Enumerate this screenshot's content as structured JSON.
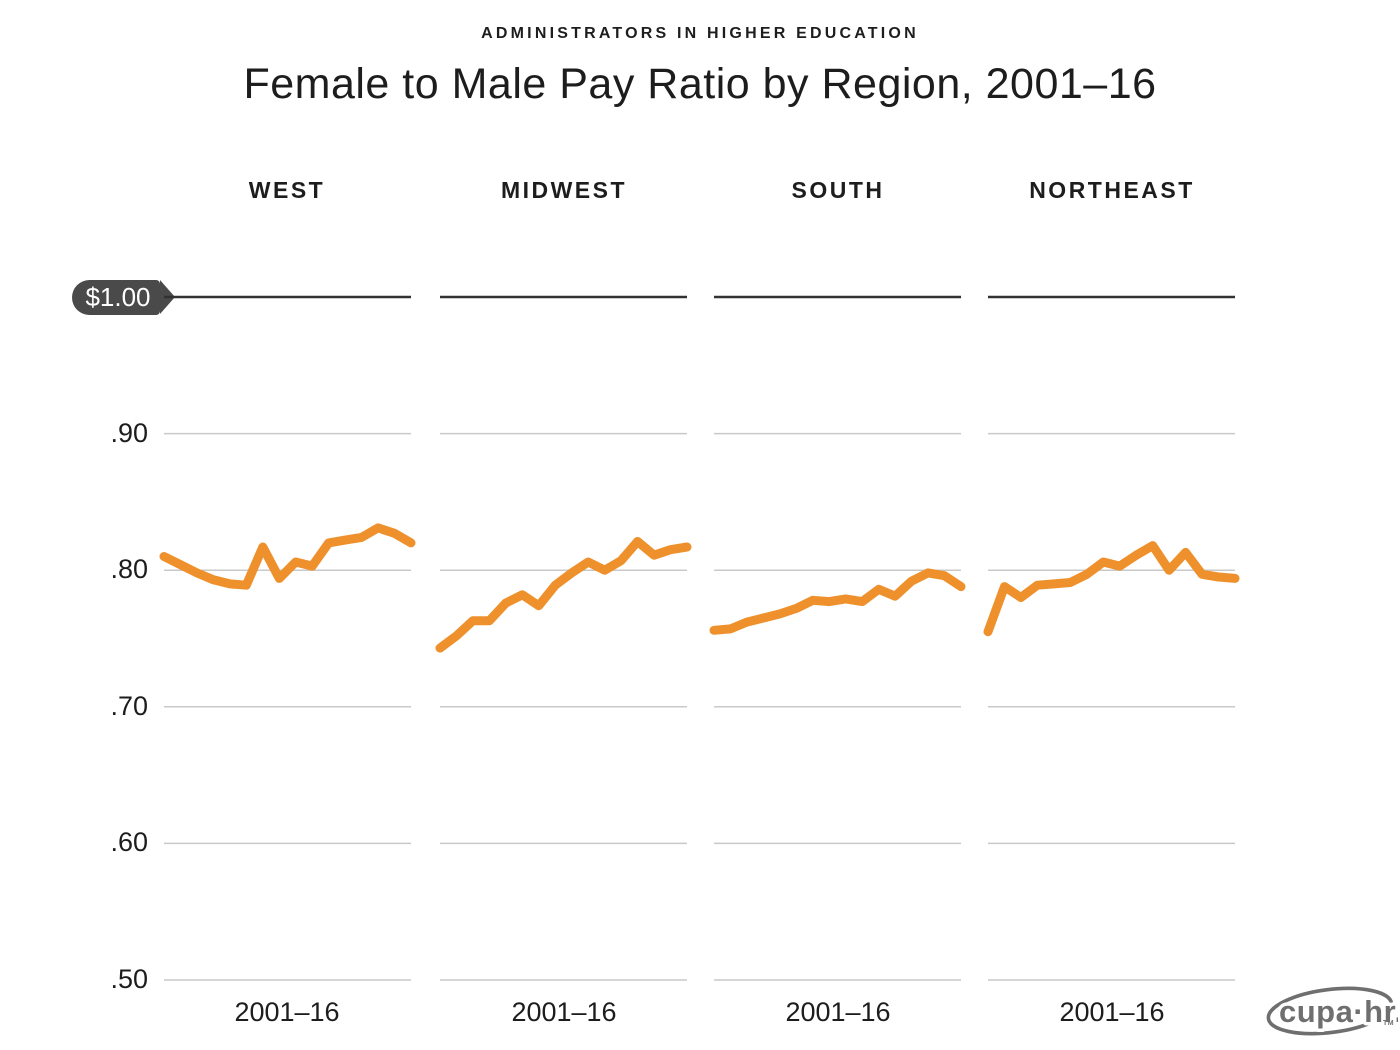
{
  "header": {
    "kicker": "ADMINISTRATORS IN HIGHER EDUCATION",
    "title": "Female to Male Pay Ratio by Region, 2001–16"
  },
  "colors": {
    "line": "#EE912D",
    "grid": "#C9C9C9",
    "top_line": "#323232",
    "pill_bg": "#4A4A4A",
    "pill_text": "#FFFFFF",
    "text": "#1D1D1D",
    "logo": "#6F6F6F"
  },
  "y_axis": {
    "top_label": "$1.00",
    "top_value": 1.0,
    "tick_labels": [
      ".90",
      ".80",
      ".70",
      ".60",
      ".50"
    ],
    "tick_values": [
      0.9,
      0.8,
      0.7,
      0.6,
      0.5
    ]
  },
  "x_axis": {
    "label": "2001–16"
  },
  "logo": {
    "text": "cupa·hr.",
    "tm": "TM"
  },
  "chart_data": {
    "type": "line",
    "title": "Female to Male Pay Ratio by Region, 2001–16",
    "subtitle": "ADMINISTRATORS IN HIGHER EDUCATION",
    "x": [
      2001,
      2002,
      2003,
      2004,
      2005,
      2006,
      2007,
      2008,
      2009,
      2010,
      2011,
      2012,
      2013,
      2014,
      2015,
      2016
    ],
    "x_tick_label": "2001–16",
    "ylim": [
      0.5,
      1.0
    ],
    "y_ticks": [
      1.0,
      0.9,
      0.8,
      0.7,
      0.6,
      0.5
    ],
    "grid": "horizontal only, $1.00 reference line emphasized",
    "legend_position": "none (small multiples with panel titles)",
    "panels": [
      {
        "name": "WEST",
        "values": [
          0.81,
          0.804,
          0.798,
          0.793,
          0.79,
          0.789,
          0.817,
          0.794,
          0.806,
          0.803,
          0.82,
          0.822,
          0.824,
          0.831,
          0.827,
          0.82
        ]
      },
      {
        "name": "MIDWEST",
        "values": [
          0.743,
          0.752,
          0.763,
          0.763,
          0.776,
          0.782,
          0.774,
          0.789,
          0.798,
          0.806,
          0.8,
          0.807,
          0.821,
          0.811,
          0.815,
          0.817
        ]
      },
      {
        "name": "SOUTH",
        "values": [
          0.756,
          0.757,
          0.762,
          0.765,
          0.768,
          0.772,
          0.778,
          0.777,
          0.779,
          0.777,
          0.786,
          0.781,
          0.792,
          0.798,
          0.796,
          0.788
        ]
      },
      {
        "name": "NORTHEAST",
        "values": [
          0.755,
          0.788,
          0.78,
          0.789,
          0.79,
          0.791,
          0.797,
          0.806,
          0.803,
          0.811,
          0.818,
          0.8,
          0.813,
          0.797,
          0.795,
          0.794
        ]
      }
    ]
  }
}
